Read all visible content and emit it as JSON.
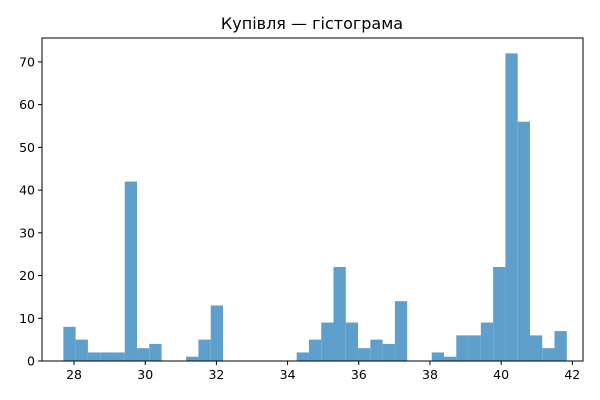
{
  "chart_data": {
    "type": "histogram",
    "title": "Купівля — гістограма",
    "xlabel": "",
    "ylabel": "",
    "xlim": [
      27.1,
      42.3
    ],
    "ylim": [
      0,
      75.6
    ],
    "xticks": [
      28,
      30,
      32,
      34,
      36,
      38,
      40,
      42
    ],
    "yticks": [
      0,
      10,
      20,
      30,
      40,
      50,
      60,
      70
    ],
    "bin_start": 27.7,
    "bin_width": 0.345,
    "counts": [
      8,
      5,
      2,
      2,
      2,
      42,
      3,
      4,
      0,
      0,
      1,
      5,
      13,
      0,
      0,
      0,
      0,
      0,
      0,
      2,
      5,
      9,
      22,
      9,
      3,
      5,
      4,
      14,
      0,
      0,
      2,
      1,
      6,
      6,
      9,
      22,
      72,
      56,
      6,
      3,
      7
    ],
    "grid": false,
    "legend": "none",
    "colors": {
      "bar": "#5f9fcb",
      "axis": "#000000",
      "background": "#ffffff"
    }
  }
}
